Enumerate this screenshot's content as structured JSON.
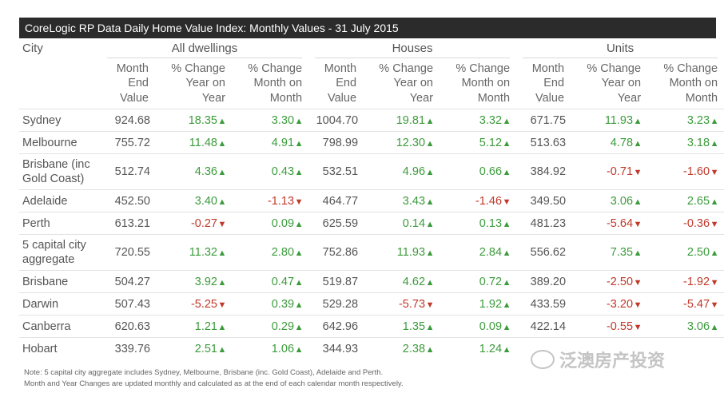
{
  "title": "CoreLogic RP Data Daily Home Value Index: Monthly Values - 31 July 2015",
  "headers": {
    "city": "City",
    "groups": [
      "All dwellings",
      "Houses",
      "Units"
    ],
    "value_lines": [
      "Month",
      "End",
      "Value"
    ],
    "yoy_lines": [
      "% Change",
      "Year on",
      "Year"
    ],
    "mom_lines": [
      "% Change",
      "Month on",
      "Month"
    ]
  },
  "rows": [
    {
      "city_lines": [
        "Sydney"
      ],
      "all": {
        "value": "924.68",
        "yoy": "18.35",
        "yoy_dir": "up",
        "mom": "3.30",
        "mom_dir": "up"
      },
      "houses": {
        "value": "1004.70",
        "yoy": "19.81",
        "yoy_dir": "up",
        "mom": "3.32",
        "mom_dir": "up"
      },
      "units": {
        "value": "671.75",
        "yoy": "11.93",
        "yoy_dir": "up",
        "mom": "3.23",
        "mom_dir": "up"
      }
    },
    {
      "city_lines": [
        "Melbourne"
      ],
      "all": {
        "value": "755.72",
        "yoy": "11.48",
        "yoy_dir": "up",
        "mom": "4.91",
        "mom_dir": "up"
      },
      "houses": {
        "value": "798.99",
        "yoy": "12.30",
        "yoy_dir": "up",
        "mom": "5.12",
        "mom_dir": "up"
      },
      "units": {
        "value": "513.63",
        "yoy": "4.78",
        "yoy_dir": "up",
        "mom": "3.18",
        "mom_dir": "up"
      }
    },
    {
      "city_lines": [
        "Brisbane (inc",
        "Gold Coast)"
      ],
      "all": {
        "value": "512.74",
        "yoy": "4.36",
        "yoy_dir": "up",
        "mom": "0.43",
        "mom_dir": "up"
      },
      "houses": {
        "value": "532.51",
        "yoy": "4.96",
        "yoy_dir": "up",
        "mom": "0.66",
        "mom_dir": "up"
      },
      "units": {
        "value": "384.92",
        "yoy": "-0.71",
        "yoy_dir": "down",
        "mom": "-1.60",
        "mom_dir": "down"
      }
    },
    {
      "city_lines": [
        "Adelaide"
      ],
      "all": {
        "value": "452.50",
        "yoy": "3.40",
        "yoy_dir": "up",
        "mom": "-1.13",
        "mom_dir": "down"
      },
      "houses": {
        "value": "464.77",
        "yoy": "3.43",
        "yoy_dir": "up",
        "mom": "-1.46",
        "mom_dir": "down"
      },
      "units": {
        "value": "349.50",
        "yoy": "3.06",
        "yoy_dir": "up",
        "mom": "2.65",
        "mom_dir": "up"
      }
    },
    {
      "city_lines": [
        "Perth"
      ],
      "all": {
        "value": "613.21",
        "yoy": "-0.27",
        "yoy_dir": "down",
        "mom": "0.09",
        "mom_dir": "up"
      },
      "houses": {
        "value": "625.59",
        "yoy": "0.14",
        "yoy_dir": "up",
        "mom": "0.13",
        "mom_dir": "up"
      },
      "units": {
        "value": "481.23",
        "yoy": "-5.64",
        "yoy_dir": "down",
        "mom": "-0.36",
        "mom_dir": "down"
      }
    },
    {
      "city_lines": [
        "5 capital city",
        "aggregate"
      ],
      "all": {
        "value": "720.55",
        "yoy": "11.32",
        "yoy_dir": "up",
        "mom": "2.80",
        "mom_dir": "up"
      },
      "houses": {
        "value": "752.86",
        "yoy": "11.93",
        "yoy_dir": "up",
        "mom": "2.84",
        "mom_dir": "up"
      },
      "units": {
        "value": "556.62",
        "yoy": "7.35",
        "yoy_dir": "up",
        "mom": "2.50",
        "mom_dir": "up"
      }
    },
    {
      "city_lines": [
        "Brisbane"
      ],
      "all": {
        "value": "504.27",
        "yoy": "3.92",
        "yoy_dir": "up",
        "mom": "0.47",
        "mom_dir": "up"
      },
      "houses": {
        "value": "519.87",
        "yoy": "4.62",
        "yoy_dir": "up",
        "mom": "0.72",
        "mom_dir": "up"
      },
      "units": {
        "value": "389.20",
        "yoy": "-2.50",
        "yoy_dir": "down",
        "mom": "-1.92",
        "mom_dir": "down"
      }
    },
    {
      "city_lines": [
        "Darwin"
      ],
      "all": {
        "value": "507.43",
        "yoy": "-5.25",
        "yoy_dir": "down",
        "mom": "0.39",
        "mom_dir": "up"
      },
      "houses": {
        "value": "529.28",
        "yoy": "-5.73",
        "yoy_dir": "down",
        "mom": "1.92",
        "mom_dir": "up"
      },
      "units": {
        "value": "433.59",
        "yoy": "-3.20",
        "yoy_dir": "down",
        "mom": "-5.47",
        "mom_dir": "down"
      }
    },
    {
      "city_lines": [
        "Canberra"
      ],
      "all": {
        "value": "620.63",
        "yoy": "1.21",
        "yoy_dir": "up",
        "mom": "0.29",
        "mom_dir": "up"
      },
      "houses": {
        "value": "642.96",
        "yoy": "1.35",
        "yoy_dir": "up",
        "mom": "0.09",
        "mom_dir": "up"
      },
      "units": {
        "value": "422.14",
        "yoy": "-0.55",
        "yoy_dir": "down",
        "mom": "3.06",
        "mom_dir": "up"
      }
    },
    {
      "city_lines": [
        "Hobart"
      ],
      "all": {
        "value": "339.76",
        "yoy": "2.51",
        "yoy_dir": "up",
        "mom": "1.06",
        "mom_dir": "up"
      },
      "houses": {
        "value": "344.93",
        "yoy": "2.38",
        "yoy_dir": "up",
        "mom": "1.24",
        "mom_dir": "up"
      },
      "units": {
        "value": "",
        "yoy": "",
        "yoy_dir": "",
        "mom": "",
        "mom_dir": ""
      }
    }
  ],
  "notes": [
    "Note: 5 capital city aggregate includes Sydney, Melbourne, Brisbane (inc. Gold Coast), Adelaide and Perth.",
    "Month and Year Changes are updated monthly and calculated as at the end of each calendar month respectively."
  ],
  "watermark": "泛澳房产投资",
  "colors": {
    "title_bg": "#2b2b2b",
    "positive": "#3c9b3c",
    "negative": "#c0392b"
  }
}
